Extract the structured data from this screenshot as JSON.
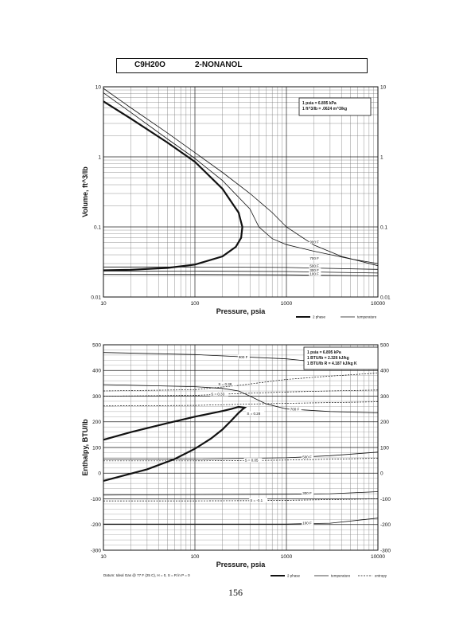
{
  "header": {
    "formula": "C9H20O",
    "name": "2-NONANOL"
  },
  "page_number": "156",
  "chart_data": [
    {
      "type": "line",
      "xlabel": "Pressure,  psia",
      "ylabel": "Volume, ft^3/lb",
      "x_scale": "log",
      "y_scale": "log",
      "xlim": [
        10,
        10000
      ],
      "ylim": [
        0.01,
        10
      ],
      "x_ticks": [
        "10",
        "100",
        "1000",
        "10000"
      ],
      "y_ticks": [
        "0.01",
        "0.1",
        "1",
        "10"
      ],
      "grid": true,
      "note": [
        "1 psia = 6.895 kPa",
        "1 ft^3/lb = .0624 m^3/kg"
      ],
      "legend": [
        {
          "label": "2 phase",
          "style": "thick"
        },
        {
          "label": "temperature",
          "style": "thin"
        }
      ],
      "curve_labels": [
        "900 F",
        "700 F",
        "500 F",
        "300 F",
        "100 F"
      ],
      "series": [
        {
          "name": "2 phase",
          "style": "thick",
          "points": [
            [
              10,
              6.2
            ],
            [
              20,
              3.5
            ],
            [
              50,
              1.6
            ],
            [
              100,
              0.85
            ],
            [
              200,
              0.35
            ],
            [
              300,
              0.16
            ],
            [
              330,
              0.1
            ],
            [
              320,
              0.07
            ],
            [
              280,
              0.052
            ],
            [
              200,
              0.038
            ],
            [
              100,
              0.029
            ],
            [
              50,
              0.026
            ],
            [
              20,
              0.0245
            ],
            [
              10,
              0.024
            ]
          ]
        },
        {
          "label": "900 F",
          "style": "thin",
          "points": [
            [
              10,
              9.5
            ],
            [
              20,
              5
            ],
            [
              50,
              2.2
            ],
            [
              100,
              1.15
            ],
            [
              200,
              0.6
            ],
            [
              400,
              0.3
            ],
            [
              700,
              0.16
            ],
            [
              1000,
              0.1
            ],
            [
              2000,
              0.055
            ],
            [
              4000,
              0.038
            ],
            [
              10000,
              0.028
            ]
          ]
        },
        {
          "label": "700 F",
          "style": "thin",
          "points": [
            [
              10,
              8.2
            ],
            [
              20,
              4.3
            ],
            [
              50,
              1.8
            ],
            [
              100,
              0.95
            ],
            [
              200,
              0.46
            ],
            [
              400,
              0.18
            ],
            [
              500,
              0.1
            ],
            [
              700,
              0.068
            ],
            [
              1000,
              0.056
            ],
            [
              2000,
              0.045
            ],
            [
              5000,
              0.035
            ],
            [
              10000,
              0.03
            ]
          ]
        },
        {
          "label": "500 F",
          "style": "thin",
          "points": [
            [
              10,
              0.0268
            ],
            [
              100,
              0.0268
            ],
            [
              1000,
              0.0264
            ],
            [
              10000,
              0.0248
            ]
          ]
        },
        {
          "label": "300 F",
          "style": "thin",
          "points": [
            [
              10,
              0.0235
            ],
            [
              100,
              0.0234
            ],
            [
              1000,
              0.0231
            ],
            [
              10000,
              0.022
            ]
          ]
        },
        {
          "label": "100 F",
          "style": "thin",
          "points": [
            [
              10,
              0.021
            ],
            [
              100,
              0.0209
            ],
            [
              1000,
              0.0207
            ],
            [
              10000,
              0.02
            ]
          ]
        }
      ]
    },
    {
      "type": "line",
      "xlabel": "Pressure,  psia",
      "ylabel": "Enthalpy, BTU/lb",
      "x_scale": "log",
      "y_scale": "linear",
      "xlim": [
        10,
        10000
      ],
      "ylim": [
        -300,
        500
      ],
      "x_ticks": [
        "10",
        "100",
        "1000",
        "10000"
      ],
      "y_ticks": [
        "-300",
        "-200",
        "-100",
        "0",
        "100",
        "200",
        "300",
        "400",
        "500"
      ],
      "grid": true,
      "note": [
        "1 psia = 6.895 kPa",
        "1 BTU/lb = 2.326 kJ/kg",
        "1 BTU/lb R = 4.187 kJ/kg K"
      ],
      "footnote": "Datum: Ideal Gas @ 77 F (25 C),  H = 0,  S = R ln P = 0",
      "legend": [
        {
          "label": "2 phase",
          "style": "thick"
        },
        {
          "label": "temperature",
          "style": "thin"
        },
        {
          "label": "entropy",
          "style": "dashed"
        }
      ],
      "curve_labels": [
        "900 F",
        "700 F",
        "500 F",
        "300 F",
        "100 F"
      ],
      "entropy_labels": [
        "S = 0.38",
        "S = 0.33",
        "S = 0.28",
        "S = 0.05",
        "S = -0.1"
      ],
      "series": [
        {
          "name": "2 phase",
          "style": "thick",
          "points": [
            [
              10,
              -30
            ],
            [
              30,
              15
            ],
            [
              60,
              55
            ],
            [
              100,
              95
            ],
            [
              150,
              135
            ],
            [
              200,
              170
            ],
            [
              250,
              205
            ],
            [
              300,
              235
            ],
            [
              330,
              248
            ],
            [
              350,
              255
            ],
            [
              300,
              258
            ],
            [
              250,
              250
            ],
            [
              200,
              242
            ],
            [
              100,
              220
            ],
            [
              50,
              195
            ],
            [
              20,
              160
            ],
            [
              10,
              130
            ]
          ]
        },
        {
          "label": "900 F",
          "style": "thin",
          "points": [
            [
              10,
              470
            ],
            [
              100,
              462
            ],
            [
              1000,
              445
            ],
            [
              3000,
              428
            ],
            [
              10000,
              410
            ]
          ]
        },
        {
          "label": "700 F",
          "style": "thin",
          "points": [
            [
              10,
              345
            ],
            [
              100,
              337
            ],
            [
              200,
              330
            ],
            [
              300,
              320
            ],
            [
              400,
              300
            ],
            [
              600,
              270
            ],
            [
              1000,
              250
            ],
            [
              3000,
              240
            ],
            [
              10000,
              235
            ]
          ]
        },
        {
          "label": "500 F",
          "style": "thin",
          "points": [
            [
              10,
              55
            ],
            [
              100,
              55
            ],
            [
              1000,
              60
            ],
            [
              3000,
              68
            ],
            [
              10000,
              82
            ]
          ]
        },
        {
          "label": "300 F",
          "style": "thin",
          "points": [
            [
              10,
              -85
            ],
            [
              1000,
              -82
            ],
            [
              3000,
              -80
            ],
            [
              10000,
              -72
            ]
          ]
        },
        {
          "label": "100 F",
          "style": "thin",
          "points": [
            [
              10,
              -198
            ],
            [
              1000,
              -198
            ],
            [
              3000,
              -195
            ],
            [
              10000,
              -175
            ]
          ]
        },
        {
          "label": "S = 0.38",
          "style": "dashed",
          "points": [
            [
              10,
              320
            ],
            [
              100,
              325
            ],
            [
              300,
              342
            ],
            [
              1000,
              365
            ],
            [
              3000,
              378
            ],
            [
              10000,
              390
            ]
          ]
        },
        {
          "label": "S = 0.33",
          "style": "dashed",
          "points": [
            [
              10,
              300
            ],
            [
              100,
              303
            ],
            [
              300,
              310
            ],
            [
              1000,
              316
            ],
            [
              3000,
              320
            ],
            [
              10000,
              324
            ]
          ]
        },
        {
          "label": "S = 0.28",
          "style": "dashed",
          "points": [
            [
              10,
              262
            ],
            [
              100,
              264
            ],
            [
              300,
              268
            ],
            [
              1000,
              272
            ],
            [
              3000,
              275
            ],
            [
              10000,
              278
            ]
          ]
        },
        {
          "label": "S = 0.05",
          "style": "dashed",
          "points": [
            [
              10,
              48
            ],
            [
              100,
              48
            ],
            [
              400,
              49
            ],
            [
              1000,
              51
            ],
            [
              10000,
              58
            ]
          ]
        },
        {
          "label": "S = -0.1",
          "style": "dashed",
          "points": [
            [
              10,
              -108
            ],
            [
              100,
              -108
            ],
            [
              500,
              -107
            ],
            [
              1000,
              -106
            ],
            [
              10000,
              -100
            ]
          ]
        }
      ]
    }
  ]
}
